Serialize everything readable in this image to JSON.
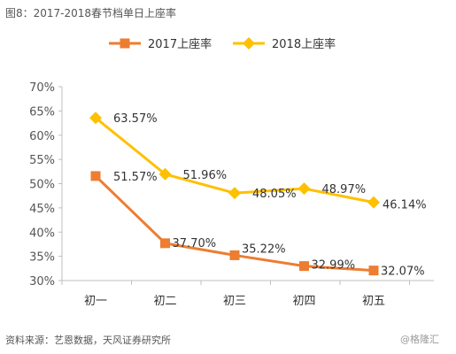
{
  "header": {
    "title": "图8：2017-2018春节档单日上座率"
  },
  "footer": {
    "source": "资料来源：艺恩数据，天风证券研究所",
    "watermark": "@格隆汇"
  },
  "chart_data": {
    "type": "line",
    "title": "图8：2017-2018春节档单日上座率",
    "categories": [
      "初一",
      "初二",
      "初三",
      "初四",
      "初五"
    ],
    "ylim": [
      30,
      70
    ],
    "yticks": [
      30,
      35,
      40,
      45,
      50,
      55,
      60,
      65,
      70
    ],
    "y_tick_format": "%",
    "grid": false,
    "legend_position": "top-center",
    "series": [
      {
        "name": "2017上座率",
        "color": "#ED7D31",
        "marker": "square",
        "values": [
          51.57,
          37.7,
          35.22,
          32.99,
          32.07
        ],
        "labels": [
          "51.57%",
          "37.70%",
          "35.22%",
          "32.99%",
          "32.07%"
        ]
      },
      {
        "name": "2018上座率",
        "color": "#FFC000",
        "marker": "diamond",
        "values": [
          63.57,
          51.96,
          48.05,
          48.97,
          46.14
        ],
        "labels": [
          "63.57%",
          "51.96%",
          "48.05%",
          "48.97%",
          "46.14%"
        ]
      }
    ]
  }
}
